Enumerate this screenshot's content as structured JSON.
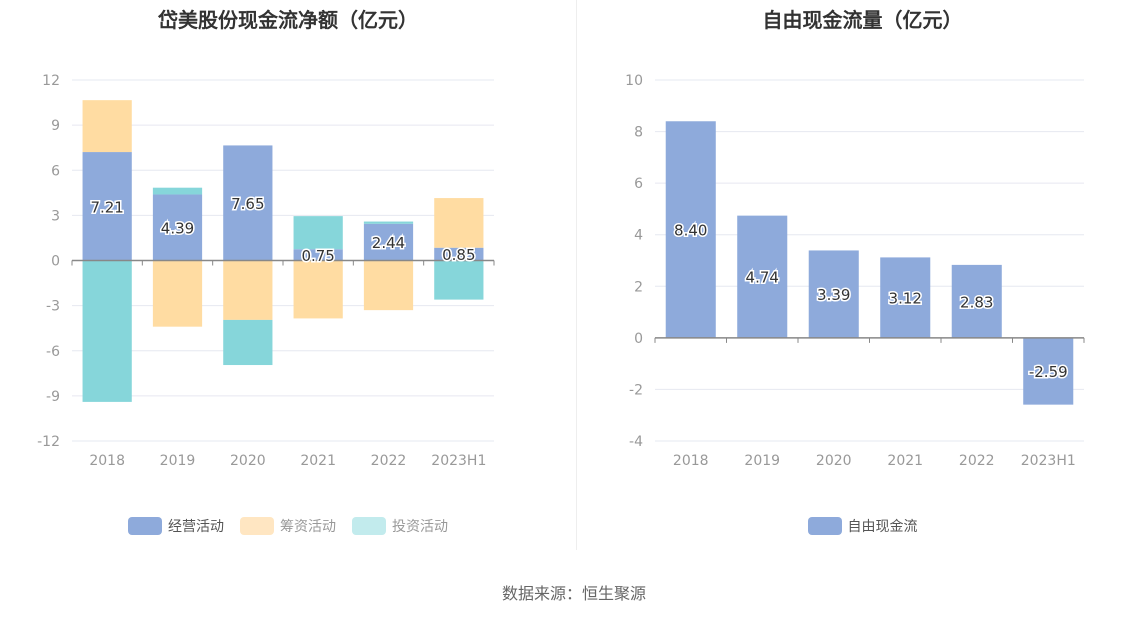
{
  "source": "数据来源：恒生聚源",
  "chart_data": [
    {
      "type": "bar",
      "stacked": true,
      "title": "岱美股份现金流净额（亿元）",
      "categories": [
        "2018",
        "2019",
        "2020",
        "2021",
        "2022",
        "2023H1"
      ],
      "ylim": [
        -12,
        12
      ],
      "yticks": [
        12,
        9,
        6,
        3,
        0,
        -3,
        -6,
        -9,
        -12
      ],
      "series": [
        {
          "name": "经营活动",
          "color": "#8eaadb",
          "values": [
            7.21,
            4.39,
            7.65,
            0.75,
            2.44,
            0.85
          ],
          "show_labels": true
        },
        {
          "name": "筹资活动",
          "color": "#ffdca2",
          "values": [
            3.45,
            -4.4,
            -3.95,
            -3.85,
            -3.3,
            3.3
          ],
          "show_labels": false
        },
        {
          "name": "投资活动",
          "color": "#86d6da",
          "values": [
            -9.4,
            0.45,
            -3.0,
            2.2,
            0.15,
            -2.6
          ],
          "show_labels": false
        }
      ],
      "legend": "bottom"
    },
    {
      "type": "bar",
      "title": "自由现金流量（亿元）",
      "categories": [
        "2018",
        "2019",
        "2020",
        "2021",
        "2022",
        "2023H1"
      ],
      "ylim": [
        -4,
        10
      ],
      "yticks": [
        10,
        8,
        6,
        4,
        2,
        0,
        -2,
        -4
      ],
      "series": [
        {
          "name": "自由现金流",
          "color": "#8eaadb",
          "values": [
            8.4,
            4.74,
            3.39,
            3.12,
            2.83,
            -2.59
          ],
          "show_labels": true
        }
      ],
      "legend": "bottom"
    }
  ]
}
